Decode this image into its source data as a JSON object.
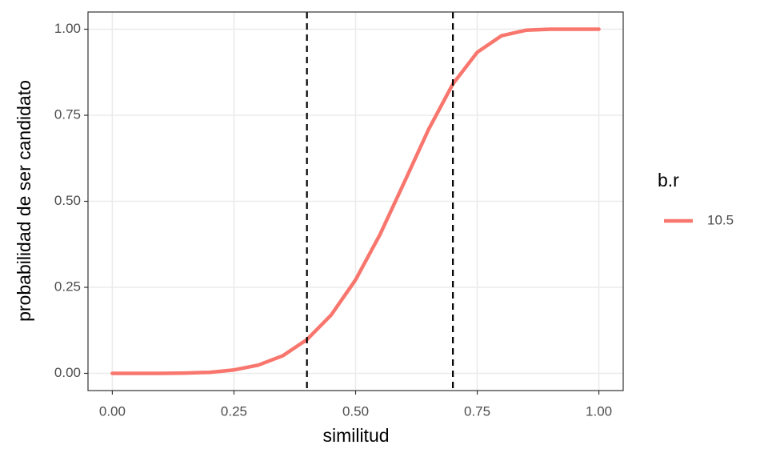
{
  "chart_data": {
    "type": "line",
    "x_label": "similitud",
    "y_label": "probabilidad de ser candidato",
    "legend_title": "b.r",
    "legend_position": "right",
    "grid": true,
    "x": [
      0,
      0.05,
      0.1,
      0.15,
      0.2,
      0.25,
      0.3,
      0.35,
      0.4,
      0.45,
      0.5,
      0.55,
      0.6,
      0.65,
      0.7,
      0.75,
      0.8,
      0.85,
      0.9,
      0.95,
      1.0
    ],
    "series": [
      {
        "name": "10.5",
        "color": "#F8766D",
        "values": [
          0,
          0,
          0,
          0.001,
          0.003,
          0.01,
          0.024,
          0.051,
          0.098,
          0.17,
          0.272,
          0.403,
          0.555,
          0.709,
          0.841,
          0.933,
          0.981,
          0.997,
          1.0,
          1.0,
          1.0
        ]
      }
    ],
    "vlines": [
      0.4,
      0.7
    ],
    "vline_color": "#000000",
    "xlim": [
      -0.05,
      1.05
    ],
    "ylim": [
      -0.05,
      1.05
    ],
    "xticks": [
      {
        "value": 0,
        "label": "0.00"
      },
      {
        "value": 0.25,
        "label": "0.25"
      },
      {
        "value": 0.5,
        "label": "0.50"
      },
      {
        "value": 0.75,
        "label": "0.75"
      },
      {
        "value": 1,
        "label": "1.00"
      }
    ],
    "yticks": [
      {
        "value": 0,
        "label": "0.00"
      },
      {
        "value": 0.25,
        "label": "0.25"
      },
      {
        "value": 0.5,
        "label": "0.50"
      },
      {
        "value": 0.75,
        "label": "0.75"
      },
      {
        "value": 1,
        "label": "1.00"
      }
    ]
  }
}
